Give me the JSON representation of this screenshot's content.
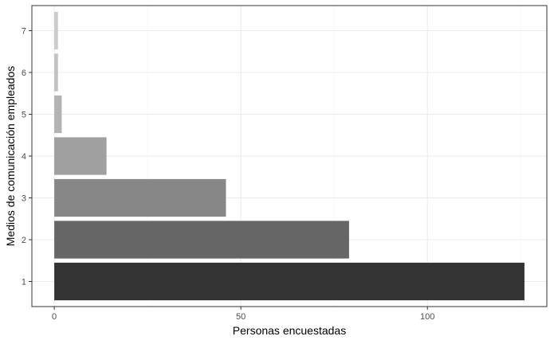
{
  "chart_data": {
    "type": "bar",
    "orientation": "horizontal",
    "title": "",
    "xlabel": "Personas encuestadas",
    "ylabel": "Medios de comunicación empleados",
    "categories": [
      "1",
      "2",
      "3",
      "4",
      "5",
      "6",
      "7"
    ],
    "values": [
      126,
      79,
      46,
      14,
      2,
      1,
      1
    ],
    "bar_colors": [
      "#333333",
      "#666666",
      "#878787",
      "#a0a0a0",
      "#b3b3b3",
      "#c2c2c2",
      "#cccccc"
    ],
    "xlim": [
      -6,
      132
    ],
    "xticks": [
      0,
      50,
      100
    ],
    "xtick_labels": [
      "0",
      "50",
      "100"
    ],
    "grid": true,
    "legend": "none"
  }
}
